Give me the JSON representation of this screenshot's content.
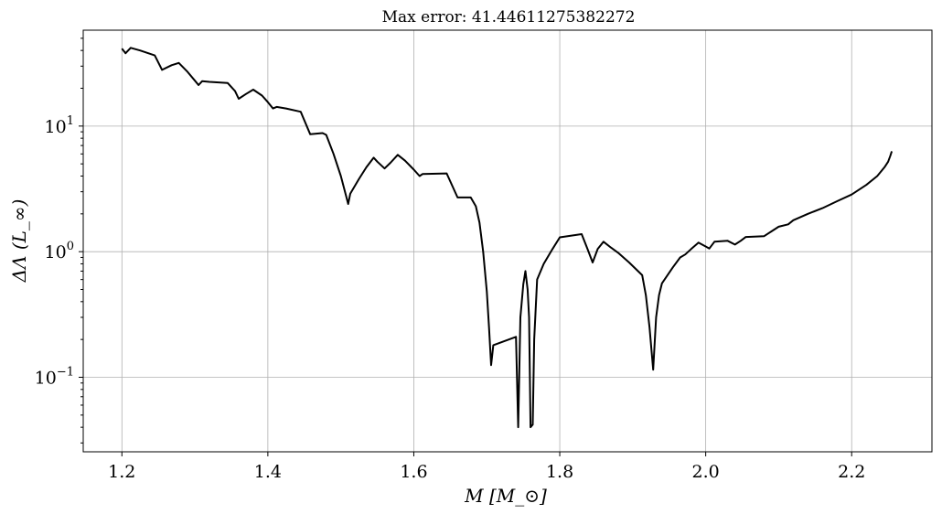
{
  "chart_data": {
    "type": "line",
    "title": "Max error: 41.44611275382272",
    "xlabel": "M [M_⊙]",
    "ylabel": "ΔΛ (L_∞)",
    "xlim": [
      1.147,
      2.31
    ],
    "ylim": [
      0.0255,
      58
    ],
    "yscale": "log",
    "grid": true,
    "x_ticks": [
      {
        "value": 1.2,
        "label": "1.2"
      },
      {
        "value": 1.4,
        "label": "1.4"
      },
      {
        "value": 1.6,
        "label": "1.6"
      },
      {
        "value": 1.8,
        "label": "1.8"
      },
      {
        "value": 2.0,
        "label": "2.0"
      },
      {
        "value": 2.2,
        "label": "2.2"
      }
    ],
    "y_ticks": [
      {
        "value": 0.1,
        "base": "10",
        "exp": "−1"
      },
      {
        "value": 1,
        "base": "10",
        "exp": "0"
      },
      {
        "value": 10,
        "base": "10",
        "exp": "1"
      }
    ],
    "series": [
      {
        "color": "#000000",
        "points": [
          [
            1.2,
            41.4
          ],
          [
            1.205,
            38.0
          ],
          [
            1.212,
            42.0
          ],
          [
            1.225,
            40.0
          ],
          [
            1.245,
            36.5
          ],
          [
            1.255,
            28.0
          ],
          [
            1.268,
            30.5
          ],
          [
            1.278,
            31.8
          ],
          [
            1.29,
            27.0
          ],
          [
            1.3,
            23.0
          ],
          [
            1.305,
            21.2
          ],
          [
            1.31,
            22.8
          ],
          [
            1.32,
            22.5
          ],
          [
            1.345,
            22.0
          ],
          [
            1.355,
            19.0
          ],
          [
            1.36,
            16.5
          ],
          [
            1.37,
            18.0
          ],
          [
            1.38,
            19.5
          ],
          [
            1.392,
            17.5
          ],
          [
            1.4,
            15.5
          ],
          [
            1.407,
            13.8
          ],
          [
            1.412,
            14.2
          ],
          [
            1.425,
            13.8
          ],
          [
            1.445,
            13.0
          ],
          [
            1.458,
            8.6
          ],
          [
            1.475,
            8.8
          ],
          [
            1.48,
            8.5
          ],
          [
            1.49,
            6.0
          ],
          [
            1.5,
            4.0
          ],
          [
            1.507,
            2.8
          ],
          [
            1.51,
            2.4
          ],
          [
            1.513,
            2.9
          ],
          [
            1.525,
            3.8
          ],
          [
            1.535,
            4.7
          ],
          [
            1.545,
            5.6
          ],
          [
            1.55,
            5.2
          ],
          [
            1.56,
            4.6
          ],
          [
            1.568,
            5.1
          ],
          [
            1.578,
            5.9
          ],
          [
            1.588,
            5.3
          ],
          [
            1.6,
            4.5
          ],
          [
            1.608,
            4.0
          ],
          [
            1.612,
            4.15
          ],
          [
            1.645,
            4.2
          ],
          [
            1.66,
            2.7
          ],
          [
            1.678,
            2.7
          ],
          [
            1.685,
            2.3
          ],
          [
            1.69,
            1.7
          ],
          [
            1.695,
            1.0
          ],
          [
            1.7,
            0.48
          ],
          [
            1.703,
            0.25
          ],
          [
            1.706,
            0.125
          ],
          [
            1.709,
            0.18
          ],
          [
            1.74,
            0.21
          ],
          [
            1.743,
            0.04
          ],
          [
            1.746,
            0.3
          ],
          [
            1.75,
            0.55
          ],
          [
            1.753,
            0.7
          ],
          [
            1.756,
            0.5
          ],
          [
            1.758,
            0.3
          ],
          [
            1.76,
            0.04
          ],
          [
            1.763,
            0.042
          ],
          [
            1.765,
            0.2
          ],
          [
            1.769,
            0.6
          ],
          [
            1.778,
            0.8
          ],
          [
            1.79,
            1.05
          ],
          [
            1.8,
            1.3
          ],
          [
            1.83,
            1.38
          ],
          [
            1.838,
            1.05
          ],
          [
            1.845,
            0.82
          ],
          [
            1.852,
            1.05
          ],
          [
            1.86,
            1.2
          ],
          [
            1.87,
            1.08
          ],
          [
            1.88,
            0.98
          ],
          [
            1.895,
            0.82
          ],
          [
            1.913,
            0.65
          ],
          [
            1.918,
            0.45
          ],
          [
            1.923,
            0.25
          ],
          [
            1.928,
            0.115
          ],
          [
            1.932,
            0.3
          ],
          [
            1.936,
            0.45
          ],
          [
            1.94,
            0.56
          ],
          [
            1.955,
            0.75
          ],
          [
            1.965,
            0.9
          ],
          [
            1.972,
            0.95
          ],
          [
            1.98,
            1.05
          ],
          [
            1.99,
            1.18
          ],
          [
            2.0,
            1.1
          ],
          [
            2.005,
            1.06
          ],
          [
            2.012,
            1.2
          ],
          [
            2.03,
            1.22
          ],
          [
            2.04,
            1.14
          ],
          [
            2.048,
            1.22
          ],
          [
            2.055,
            1.31
          ],
          [
            2.08,
            1.33
          ],
          [
            2.09,
            1.45
          ],
          [
            2.1,
            1.58
          ],
          [
            2.113,
            1.65
          ],
          [
            2.12,
            1.78
          ],
          [
            2.14,
            2.0
          ],
          [
            2.16,
            2.22
          ],
          [
            2.18,
            2.52
          ],
          [
            2.2,
            2.85
          ],
          [
            2.22,
            3.4
          ],
          [
            2.235,
            4.0
          ],
          [
            2.245,
            4.7
          ],
          [
            2.25,
            5.2
          ],
          [
            2.253,
            5.8
          ],
          [
            2.255,
            6.3
          ]
        ]
      }
    ]
  }
}
